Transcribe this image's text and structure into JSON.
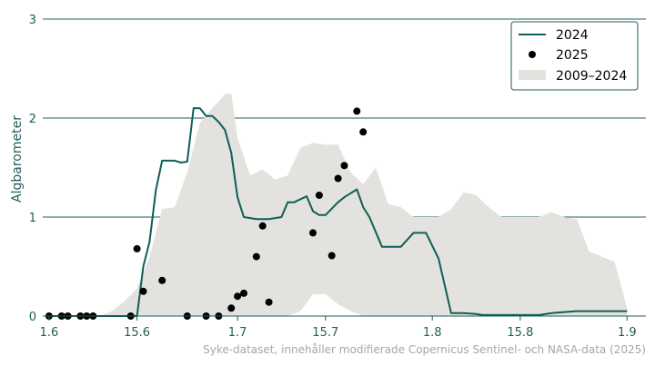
{
  "chart_data": {
    "type": "line",
    "ylabel": "Algbarometer",
    "xlabel": "",
    "ylim": [
      0,
      3
    ],
    "yticks": [
      "0",
      "1",
      "2",
      "3"
    ],
    "x_tick_labels": [
      "1.6",
      "15.6",
      "1.7",
      "15.7",
      "1.8",
      "15.8",
      "1.9"
    ],
    "x_tick_days": [
      0,
      14,
      30,
      44,
      61,
      75,
      92
    ],
    "xlim_days": [
      -1,
      95
    ],
    "grid": "horizontal",
    "legend_position": "top-right",
    "credit": "Syke-dataset, innehåller modifierade Copernicus Sentinel- och NASA-data (2025)",
    "colors": {
      "line_2024": "#0f5e57",
      "points_2025": "#000000",
      "band": "#e3e2de",
      "axis": "#1f5f5b"
    },
    "series": [
      {
        "name": "2024",
        "type": "line",
        "x": [
          "1.6",
          "3.6",
          "5.6",
          "7.6",
          "9.6",
          "11.6",
          "12.6",
          "13.6",
          "14.6",
          "15.6",
          "16.6",
          "17.6",
          "18.6",
          "19.6",
          "20.6",
          "21.6",
          "22.6",
          "23.6",
          "24.6",
          "25.6",
          "26.6",
          "27.6",
          "28.6",
          "29.6",
          "30.6",
          "1.7",
          "2.7",
          "4.7",
          "6.7",
          "8.7",
          "9.7",
          "10.7",
          "12.7",
          "13.7",
          "14.7",
          "15.7",
          "17.7",
          "18.7",
          "20.7",
          "21.7",
          "22.7",
          "23.7",
          "24.7",
          "25.7",
          "26.7",
          "27.7",
          "29.7",
          "31.7",
          "2.8",
          "4.8",
          "6.8",
          "8.8",
          "9.8",
          "10.8",
          "12.8",
          "14.8",
          "16.8",
          "18.8",
          "20.8",
          "22.8",
          "24.8",
          "26.8",
          "28.8",
          "30.8",
          "1.9"
        ],
        "y": [
          0,
          0,
          0,
          0,
          0,
          0,
          0,
          0,
          0,
          0,
          0.5,
          0.75,
          1.27,
          1.57,
          1.57,
          1.57,
          1.55,
          1.56,
          2.1,
          2.1,
          2.02,
          2.02,
          1.96,
          1.88,
          1.65,
          1.2,
          1.0,
          0.98,
          0.98,
          1.0,
          1.15,
          1.15,
          1.21,
          1.06,
          1.02,
          1.02,
          1.15,
          1.2,
          1.28,
          1.1,
          1.0,
          0.85,
          0.7,
          0.7,
          0.7,
          0.7,
          0.84,
          0.84,
          0.58,
          0.03,
          0.03,
          0.02,
          0.01,
          0.01,
          0.01,
          0.01,
          0.01,
          0.01,
          0.03,
          0.04,
          0.05,
          0.05,
          0.05,
          0.05,
          0.05
        ]
      },
      {
        "name": "2025",
        "type": "scatter",
        "points": [
          {
            "x": "1.6",
            "y": 0
          },
          {
            "x": "3.6",
            "y": 0
          },
          {
            "x": "4.6",
            "y": 0
          },
          {
            "x": "6.6",
            "y": 0
          },
          {
            "x": "7.6",
            "y": 0
          },
          {
            "x": "8.6",
            "y": 0
          },
          {
            "x": "14.6",
            "y": 0
          },
          {
            "x": "15.6",
            "y": 0.68
          },
          {
            "x": "16.6",
            "y": 0.25
          },
          {
            "x": "19.6",
            "y": 0.36
          },
          {
            "x": "23.6",
            "y": 0
          },
          {
            "x": "26.6",
            "y": 0
          },
          {
            "x": "28.6",
            "y": 0
          },
          {
            "x": "30.6",
            "y": 0.08
          },
          {
            "x": "1.7",
            "y": 0.2
          },
          {
            "x": "2.7",
            "y": 0.23
          },
          {
            "x": "4.7",
            "y": 0.6
          },
          {
            "x": "5.7",
            "y": 0.91
          },
          {
            "x": "6.7",
            "y": 0.14
          },
          {
            "x": "13.7",
            "y": 0.84
          },
          {
            "x": "14.7",
            "y": 1.22
          },
          {
            "x": "16.7",
            "y": 0.61
          },
          {
            "x": "17.7",
            "y": 1.39
          },
          {
            "x": "18.7",
            "y": 1.52
          },
          {
            "x": "20.7",
            "y": 2.07
          },
          {
            "x": "21.7",
            "y": 1.86
          }
        ]
      },
      {
        "name": "2009–2024",
        "type": "area-range",
        "x": [
          "1.6",
          "3.6",
          "5.6",
          "7.6",
          "9.6",
          "11.6",
          "13.6",
          "15.6",
          "17.6",
          "19.6",
          "21.6",
          "23.6",
          "25.6",
          "27.6",
          "29.6",
          "30.6",
          "1.7",
          "3.7",
          "5.7",
          "7.7",
          "9.7",
          "11.7",
          "13.7",
          "15.7",
          "17.7",
          "19.7",
          "21.7",
          "23.7",
          "25.7",
          "27.7",
          "29.7",
          "31.7",
          "2.8",
          "4.8",
          "6.8",
          "8.8",
          "10.8",
          "12.8",
          "14.8",
          "16.8",
          "18.8",
          "20.8",
          "22.8",
          "24.8",
          "26.8",
          "28.8",
          "30.8",
          "1.9"
        ],
        "low": [
          0,
          0,
          0,
          0,
          0,
          0,
          0,
          0,
          0,
          0,
          0,
          0,
          0,
          0,
          0,
          0,
          0,
          0,
          0,
          0,
          0,
          0.05,
          0.22,
          0.22,
          0.12,
          0.05,
          0,
          0,
          0,
          0,
          0,
          0,
          0,
          0,
          0,
          0,
          0,
          0,
          0,
          0,
          0,
          0,
          0,
          0,
          0,
          0,
          0,
          0
        ],
        "high": [
          0,
          0,
          0,
          0,
          0,
          0.05,
          0.15,
          0.28,
          0.6,
          1.08,
          1.1,
          1.45,
          1.95,
          2.1,
          2.24,
          2.25,
          1.8,
          1.42,
          1.48,
          1.38,
          1.42,
          1.7,
          1.75,
          1.73,
          1.73,
          1.45,
          1.33,
          1.5,
          1.13,
          1.1,
          1.0,
          1.0,
          1.0,
          1.08,
          1.25,
          1.22,
          1.1,
          1.0,
          1.0,
          1.0,
          1.0,
          1.05,
          1.0,
          0.98,
          0.65,
          0.6,
          0.55,
          0.08
        ]
      }
    ]
  }
}
